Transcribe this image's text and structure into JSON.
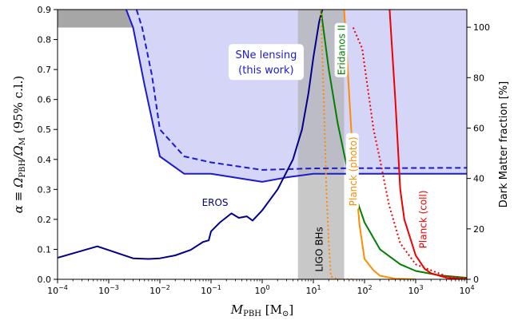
{
  "chart_data": {
    "type": "line",
    "xscale": "log",
    "xlim": [
      0.0001,
      10000
    ],
    "ylim": [
      0,
      0.9
    ],
    "y2lim": [
      0,
      107
    ],
    "grid": false,
    "xlabel_main": "M",
    "xlabel_sub": "PBH",
    "xlabel_unit_open": " [M",
    "xlabel_unit_sub": "⊙",
    "xlabel_unit_close": "]",
    "ylabel_prefix": "α ≡ Ω",
    "ylabel_sub1": "PBH",
    "ylabel_mid": "/Ω",
    "ylabel_sub2": "M",
    "ylabel_suffix": "    (95% c.l.)",
    "y2label": "Dark Matter fraction [%]",
    "x_ticks": [
      {
        "value": 0.0001,
        "base": "10",
        "exp": "−4"
      },
      {
        "value": 0.001,
        "base": "10",
        "exp": "−3"
      },
      {
        "value": 0.01,
        "base": "10",
        "exp": "−2"
      },
      {
        "value": 0.1,
        "base": "10",
        "exp": "−1"
      },
      {
        "value": 1,
        "base": "10",
        "exp": "0"
      },
      {
        "value": 10,
        "base": "10",
        "exp": "1"
      },
      {
        "value": 100,
        "base": "10",
        "exp": "2"
      },
      {
        "value": 1000,
        "base": "10",
        "exp": "3"
      },
      {
        "value": 10000,
        "base": "10",
        "exp": "4"
      }
    ],
    "y_ticks": [
      "0.0",
      "0.1",
      "0.2",
      "0.3",
      "0.4",
      "0.5",
      "0.6",
      "0.7",
      "0.8",
      "0.9"
    ],
    "y2_ticks": [
      "0",
      "20",
      "40",
      "60",
      "80",
      "100"
    ],
    "bands": {
      "top_excluded": {
        "y_from": 0.84,
        "y_to": 0.9,
        "color": "#a6a6a6"
      },
      "ligo": {
        "x_from": 5,
        "x_to": 40,
        "color": "#b3b3b3"
      }
    },
    "regions": {
      "sne_fill_color": "#d5d5f7"
    },
    "series": [
      {
        "id": "sne-solid",
        "style": "solid",
        "color": "#1b1bd0",
        "points": [
          [
            0.0022,
            0.9
          ],
          [
            0.003,
            0.84
          ],
          [
            0.005,
            0.65
          ],
          [
            0.01,
            0.41
          ],
          [
            0.03,
            0.352
          ],
          [
            0.1,
            0.352
          ],
          [
            1,
            0.325
          ],
          [
            3,
            0.34
          ],
          [
            10,
            0.352
          ],
          [
            10000,
            0.352
          ]
        ]
      },
      {
        "id": "sne-dashed",
        "style": "dashed",
        "color": "#1b1bd0",
        "points": [
          [
            0.0035,
            0.9
          ],
          [
            0.0045,
            0.84
          ],
          [
            0.007,
            0.68
          ],
          [
            0.01,
            0.5
          ],
          [
            0.03,
            0.41
          ],
          [
            0.1,
            0.39
          ],
          [
            1,
            0.365
          ],
          [
            10,
            0.37
          ],
          [
            10000,
            0.372
          ]
        ]
      },
      {
        "id": "eros",
        "style": "solid",
        "color": "#00008b",
        "points": [
          [
            0.0001,
            0.072
          ],
          [
            0.0006,
            0.11
          ],
          [
            0.003,
            0.07
          ],
          [
            0.006,
            0.068
          ],
          [
            0.01,
            0.07
          ],
          [
            0.02,
            0.08
          ],
          [
            0.04,
            0.098
          ],
          [
            0.07,
            0.125
          ],
          [
            0.09,
            0.13
          ],
          [
            0.1,
            0.16
          ],
          [
            0.15,
            0.19
          ],
          [
            0.25,
            0.22
          ],
          [
            0.35,
            0.205
          ],
          [
            0.5,
            0.21
          ],
          [
            0.65,
            0.196
          ],
          [
            1,
            0.23
          ],
          [
            2,
            0.3
          ],
          [
            4,
            0.4
          ],
          [
            6,
            0.5
          ],
          [
            8,
            0.62
          ],
          [
            10,
            0.74
          ],
          [
            13,
            0.86
          ],
          [
            15,
            0.9
          ]
        ]
      },
      {
        "id": "eridanos",
        "style": "solid",
        "color": "#008000",
        "points": [
          [
            14,
            0.9
          ],
          [
            20,
            0.7
          ],
          [
            30,
            0.52
          ],
          [
            50,
            0.34
          ],
          [
            100,
            0.19
          ],
          [
            200,
            0.1
          ],
          [
            500,
            0.05
          ],
          [
            1000,
            0.028
          ],
          [
            3000,
            0.013
          ],
          [
            10000,
            0.005
          ]
        ]
      },
      {
        "id": "planck-photo-solid",
        "style": "solid",
        "color": "#ff8c00",
        "points": [
          [
            40,
            0.9
          ],
          [
            55,
            0.5
          ],
          [
            80,
            0.18
          ],
          [
            100,
            0.068
          ],
          [
            150,
            0.03
          ],
          [
            200,
            0.012
          ],
          [
            400,
            0.002
          ],
          [
            1000,
            0.0
          ]
        ]
      },
      {
        "id": "planck-photo-dotted",
        "style": "dotted",
        "color": "#ff8c00",
        "points": [
          [
            14,
            0.9
          ],
          [
            16,
            0.6
          ],
          [
            18,
            0.3
          ],
          [
            20,
            0.12
          ],
          [
            22,
            0.01
          ],
          [
            30,
            0.0
          ],
          [
            60,
            0.0
          ]
        ]
      },
      {
        "id": "planck-coll-solid",
        "style": "solid",
        "color": "#ee0000",
        "points": [
          [
            310,
            0.9
          ],
          [
            400,
            0.6
          ],
          [
            500,
            0.3
          ],
          [
            600,
            0.2
          ],
          [
            1000,
            0.08
          ],
          [
            1500,
            0.035
          ],
          [
            2000,
            0.02
          ],
          [
            4000,
            0.005
          ],
          [
            10000,
            0.0
          ]
        ]
      },
      {
        "id": "planck-coll-dotted",
        "style": "dotted",
        "color": "#ee0000",
        "points": [
          [
            60,
            0.84
          ],
          [
            90,
            0.77
          ],
          [
            150,
            0.5
          ],
          [
            200,
            0.4
          ],
          [
            300,
            0.25
          ],
          [
            500,
            0.12
          ],
          [
            1000,
            0.05
          ],
          [
            2000,
            0.03
          ],
          [
            4000,
            0.01
          ],
          [
            10000,
            0.005
          ]
        ]
      }
    ],
    "labels": {
      "sne_lensing_1": "SNe lensing",
      "sne_lensing_2": "(this work)",
      "eros": "EROS",
      "ligo": "LIGO BHs",
      "eridanos": "Eridanos II",
      "planck_photo": "Planck (photo)",
      "planck_coll": "Planck (coll)"
    },
    "label_colors": {
      "sne": "#1b1bd0",
      "eros": "#00008b",
      "ligo": "#000000",
      "eridanos": "#008000",
      "planck_photo": "#ff8c00",
      "planck_coll": "#ee0000"
    }
  }
}
